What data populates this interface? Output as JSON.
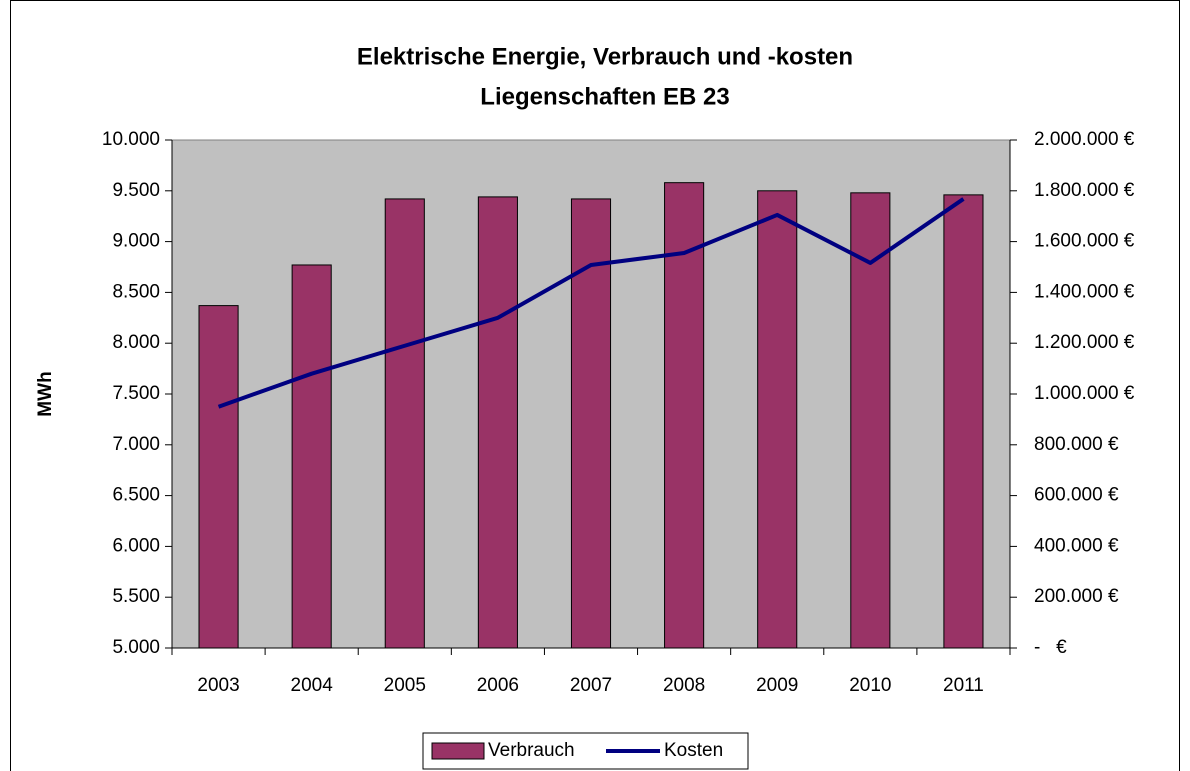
{
  "chart_data": {
    "type": "bar_line",
    "title": "Elektrische Energie, Verbrauch und -kosten",
    "subtitle": "Liegenschaften EB 23",
    "y_label": "MWh",
    "categories": [
      "2003",
      "2004",
      "2005",
      "2006",
      "2007",
      "2008",
      "2009",
      "2010",
      "2011"
    ],
    "series": [
      {
        "name": "Verbrauch",
        "color": "#993366",
        "type": "bar",
        "values": [
          8370,
          8770,
          9420,
          9440,
          9420,
          9580,
          9500,
          9480,
          9460
        ]
      },
      {
        "name": "Kosten",
        "color": "#000080",
        "type": "line",
        "axis": "y2",
        "values": [
          950000,
          1080000,
          1190000,
          1300000,
          1508000,
          1555000,
          1705000,
          1516000,
          1768000
        ]
      }
    ],
    "ylim": [
      5000,
      10000
    ],
    "yticks": [
      {
        "value": 5000,
        "label": "5.000"
      },
      {
        "value": 5500,
        "label": "5.500"
      },
      {
        "value": 6000,
        "label": "6.000"
      },
      {
        "value": 6500,
        "label": "6.500"
      },
      {
        "value": 7000,
        "label": "7.000"
      },
      {
        "value": 7500,
        "label": "7.500"
      },
      {
        "value": 8000,
        "label": "8.000"
      },
      {
        "value": 8500,
        "label": "8.500"
      },
      {
        "value": 9000,
        "label": "9.000"
      },
      {
        "value": 9500,
        "label": "9.500"
      },
      {
        "value": 10000,
        "label": "10.000"
      }
    ],
    "y2lim": [
      0,
      2000000
    ],
    "y2ticks": [
      {
        "value": 0,
        "label": "-   €"
      },
      {
        "value": 200000,
        "label": "200.000 €"
      },
      {
        "value": 400000,
        "label": "400.000 €"
      },
      {
        "value": 600000,
        "label": "600.000 €"
      },
      {
        "value": 800000,
        "label": "800.000 €"
      },
      {
        "value": 1000000,
        "label": "1.000.000 €"
      },
      {
        "value": 1200000,
        "label": "1.200.000 €"
      },
      {
        "value": 1400000,
        "label": "1.400.000 €"
      },
      {
        "value": 1600000,
        "label": "1.600.000 €"
      },
      {
        "value": 1800000,
        "label": "1.800.000 €"
      },
      {
        "value": 2000000,
        "label": "2.000.000 €"
      }
    ],
    "legend": "bottom"
  }
}
